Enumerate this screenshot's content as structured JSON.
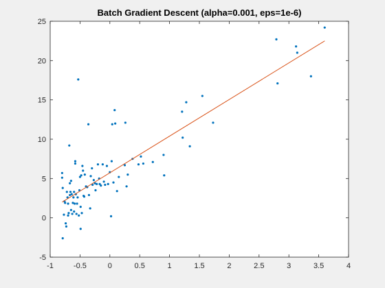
{
  "chart_data": {
    "type": "scatter",
    "title": "Batch Gradient Descent (alpha=0.001, eps=1e-6)",
    "xlabel": "",
    "ylabel": "",
    "xlim": [
      -1,
      4
    ],
    "ylim": [
      -5,
      25
    ],
    "x_ticks": [
      -1,
      -0.5,
      0,
      0.5,
      1,
      1.5,
      2,
      2.5,
      3,
      3.5,
      4
    ],
    "x_tick_labels": [
      "-1",
      "-0.5",
      "0",
      "0.5",
      "1",
      "1.5",
      "2",
      "2.5",
      "3",
      "3.5",
      "4"
    ],
    "y_ticks": [
      -5,
      0,
      5,
      10,
      15,
      20,
      25
    ],
    "y_tick_labels": [
      "-5",
      "0",
      "5",
      "10",
      "15",
      "20",
      "25"
    ],
    "grid": false,
    "colors": {
      "points": "#0072BD",
      "fit_line": "#D95319",
      "axes": "#262626",
      "plot_bg": "#ffffff"
    },
    "series": [
      {
        "kind": "scatter",
        "points": [
          [
            -0.8,
            5.7
          ],
          [
            -0.8,
            5.1
          ],
          [
            -0.79,
            3.8
          ],
          [
            -0.79,
            -2.6
          ],
          [
            -0.77,
            0.4
          ],
          [
            -0.76,
            2.1
          ],
          [
            -0.75,
            1.9
          ],
          [
            -0.74,
            -0.7
          ],
          [
            -0.73,
            -1.1
          ],
          [
            -0.72,
            3.3
          ],
          [
            -0.71,
            2.6
          ],
          [
            -0.7,
            0.3
          ],
          [
            -0.7,
            1.8
          ],
          [
            -0.69,
            0.6
          ],
          [
            -0.68,
            9.2
          ],
          [
            -0.67,
            4.4
          ],
          [
            -0.67,
            2.9
          ],
          [
            -0.66,
            3.3
          ],
          [
            -0.65,
            1.0
          ],
          [
            -0.65,
            4.7
          ],
          [
            -0.64,
            3.0
          ],
          [
            -0.63,
            0.5
          ],
          [
            -0.62,
            1.9
          ],
          [
            -0.61,
            2.6
          ],
          [
            -0.6,
            3.3
          ],
          [
            -0.6,
            0.8
          ],
          [
            -0.59,
            1.8
          ],
          [
            -0.58,
            7.2
          ],
          [
            -0.58,
            6.9
          ],
          [
            -0.57,
            3.0
          ],
          [
            -0.56,
            0.5
          ],
          [
            -0.55,
            1.8
          ],
          [
            -0.54,
            2.6
          ],
          [
            -0.53,
            17.6
          ],
          [
            -0.52,
            0.3
          ],
          [
            -0.51,
            3.5
          ],
          [
            -0.5,
            5.2
          ],
          [
            -0.49,
            -1.4
          ],
          [
            -0.49,
            1.4
          ],
          [
            -0.48,
            5.4
          ],
          [
            -0.47,
            0.6
          ],
          [
            -0.46,
            6.6
          ],
          [
            -0.45,
            6.0
          ],
          [
            -0.44,
            2.8
          ],
          [
            -0.43,
            2.7
          ],
          [
            -0.42,
            5.5
          ],
          [
            -0.4,
            4.0
          ],
          [
            -0.38,
            3.9
          ],
          [
            -0.36,
            11.9
          ],
          [
            -0.35,
            2.9
          ],
          [
            -0.33,
            1.2
          ],
          [
            -0.32,
            5.3
          ],
          [
            -0.3,
            6.3
          ],
          [
            -0.29,
            4.2
          ],
          [
            -0.27,
            4.8
          ],
          [
            -0.25,
            4.4
          ],
          [
            -0.24,
            3.5
          ],
          [
            -0.22,
            4.3
          ],
          [
            -0.2,
            6.8
          ],
          [
            -0.18,
            5.0
          ],
          [
            -0.17,
            4.3
          ],
          [
            -0.15,
            4.1
          ],
          [
            -0.12,
            6.8
          ],
          [
            -0.1,
            4.6
          ],
          [
            -0.08,
            4.2
          ],
          [
            -0.05,
            6.6
          ],
          [
            -0.03,
            4.3
          ],
          [
            0.0,
            5.8
          ],
          [
            0.02,
            0.2
          ],
          [
            0.03,
            7.2
          ],
          [
            0.04,
            11.9
          ],
          [
            0.06,
            4.5
          ],
          [
            0.08,
            13.7
          ],
          [
            0.09,
            12.0
          ],
          [
            0.12,
            3.4
          ],
          [
            0.15,
            5.2
          ],
          [
            0.25,
            6.7
          ],
          [
            0.26,
            12.1
          ],
          [
            0.28,
            4.0
          ],
          [
            0.3,
            5.5
          ],
          [
            0.38,
            7.5
          ],
          [
            0.48,
            6.8
          ],
          [
            0.52,
            7.8
          ],
          [
            0.56,
            6.9
          ],
          [
            0.72,
            7.1
          ],
          [
            0.9,
            8.0
          ],
          [
            0.91,
            5.4
          ],
          [
            1.21,
            13.5
          ],
          [
            1.22,
            10.2
          ],
          [
            1.28,
            14.7
          ],
          [
            1.34,
            9.1
          ],
          [
            1.55,
            15.5
          ],
          [
            1.73,
            12.1
          ],
          [
            2.79,
            22.7
          ],
          [
            2.81,
            17.1
          ],
          [
            3.12,
            21.8
          ],
          [
            3.14,
            21.0
          ],
          [
            3.37,
            18.0
          ],
          [
            3.6,
            24.2
          ]
        ]
      },
      {
        "kind": "line",
        "points": [
          [
            -0.8,
            2.0
          ],
          [
            3.6,
            22.5
          ]
        ]
      }
    ]
  }
}
